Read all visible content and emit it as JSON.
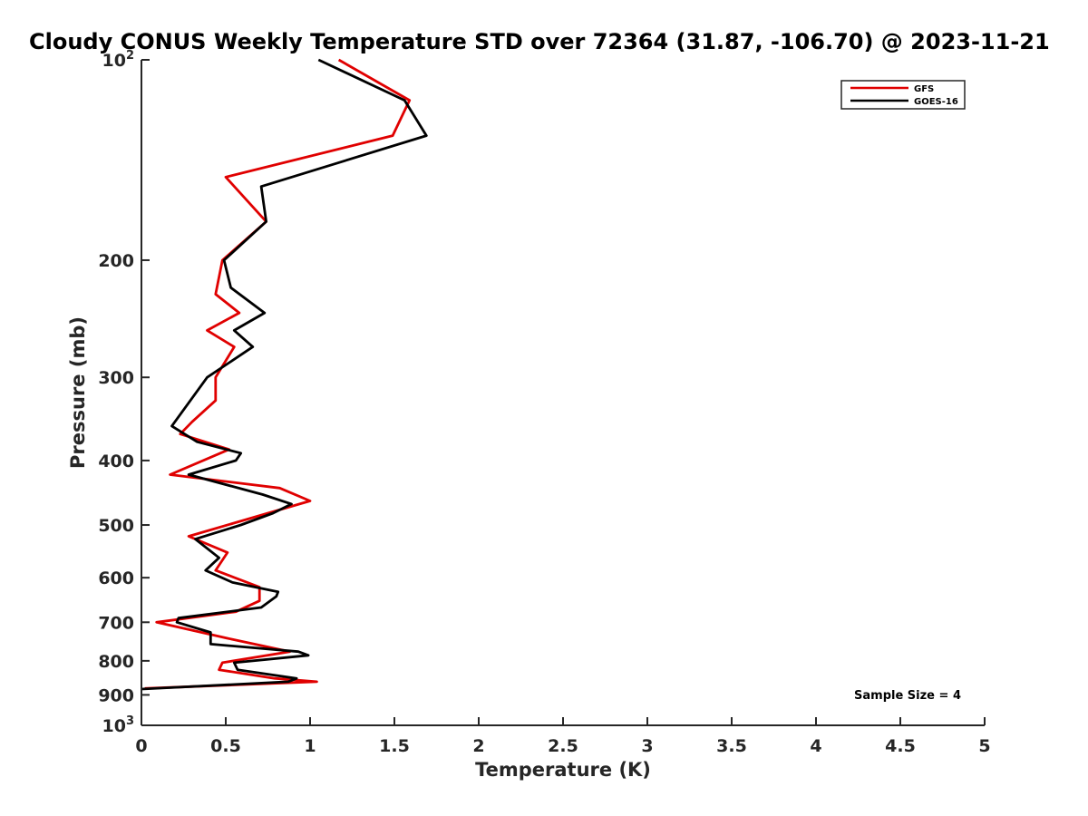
{
  "chart_data": {
    "type": "line",
    "title": "Cloudy CONUS Weekly Temperature STD over 72364 (31.87, -106.70) @ 2023-11-21",
    "xlabel": "Temperature (K)",
    "ylabel": "Pressure (mb)",
    "xlim": [
      0,
      5
    ],
    "ylim": [
      100,
      1000
    ],
    "y_scale": "log",
    "y_reversed": true,
    "x_ticks": [
      "0",
      "0.5",
      "1",
      "1.5",
      "2",
      "2.5",
      "3",
      "3.5",
      "4",
      "4.5",
      "5"
    ],
    "y_ticks": [
      {
        "value": 100,
        "base": "10",
        "exp": "2"
      },
      {
        "value": 200,
        "label": "200"
      },
      {
        "value": 300,
        "label": "300"
      },
      {
        "value": 400,
        "label": "400"
      },
      {
        "value": 500,
        "label": "500"
      },
      {
        "value": 600,
        "label": "600"
      },
      {
        "value": 700,
        "label": "700"
      },
      {
        "value": 800,
        "label": "800"
      },
      {
        "value": 900,
        "label": "900"
      },
      {
        "value": 1000,
        "base": "10",
        "exp": "3"
      }
    ],
    "grid": false,
    "legend_position": "top-right",
    "annotation": "Sample Size = 4",
    "series": [
      {
        "name": "GFS",
        "color": "#e00000",
        "points": [
          [
            1.17,
            100
          ],
          [
            1.59,
            115
          ],
          [
            1.49,
            130
          ],
          [
            0.5,
            150
          ],
          [
            0.74,
            175
          ],
          [
            0.48,
            200
          ],
          [
            0.44,
            225
          ],
          [
            0.58,
            240
          ],
          [
            0.39,
            255
          ],
          [
            0.55,
            270
          ],
          [
            0.44,
            300
          ],
          [
            0.44,
            325
          ],
          [
            0.3,
            350
          ],
          [
            0.23,
            365
          ],
          [
            0.52,
            385
          ],
          [
            0.17,
            420
          ],
          [
            0.82,
            440
          ],
          [
            1.0,
            460
          ],
          [
            0.75,
            480
          ],
          [
            0.28,
            520
          ],
          [
            0.51,
            550
          ],
          [
            0.44,
            585
          ],
          [
            0.7,
            620
          ],
          [
            0.7,
            650
          ],
          [
            0.56,
            675
          ],
          [
            0.09,
            700
          ],
          [
            0.51,
            740
          ],
          [
            0.88,
            775
          ],
          [
            0.48,
            805
          ],
          [
            0.46,
            825
          ],
          [
            0.79,
            850
          ],
          [
            1.04,
            860
          ],
          [
            0.02,
            880
          ]
        ]
      },
      {
        "name": "GOES-16",
        "color": "#000000",
        "points": [
          [
            1.05,
            100
          ],
          [
            1.56,
            115
          ],
          [
            1.69,
            130
          ],
          [
            0.71,
            155
          ],
          [
            0.74,
            175
          ],
          [
            0.49,
            200
          ],
          [
            0.53,
            220
          ],
          [
            0.73,
            240
          ],
          [
            0.55,
            255
          ],
          [
            0.66,
            270
          ],
          [
            0.39,
            300
          ],
          [
            0.18,
            355
          ],
          [
            0.33,
            375
          ],
          [
            0.59,
            390
          ],
          [
            0.56,
            400
          ],
          [
            0.28,
            420
          ],
          [
            0.72,
            450
          ],
          [
            0.89,
            465
          ],
          [
            0.78,
            480
          ],
          [
            0.59,
            500
          ],
          [
            0.32,
            525
          ],
          [
            0.46,
            560
          ],
          [
            0.38,
            585
          ],
          [
            0.54,
            610
          ],
          [
            0.81,
            630
          ],
          [
            0.8,
            640
          ],
          [
            0.71,
            665
          ],
          [
            0.22,
            690
          ],
          [
            0.21,
            700
          ],
          [
            0.41,
            725
          ],
          [
            0.41,
            755
          ],
          [
            0.93,
            775
          ],
          [
            0.99,
            785
          ],
          [
            0.55,
            805
          ],
          [
            0.57,
            825
          ],
          [
            0.92,
            850
          ],
          [
            0.87,
            860
          ],
          [
            0.0,
            882
          ]
        ]
      }
    ]
  }
}
